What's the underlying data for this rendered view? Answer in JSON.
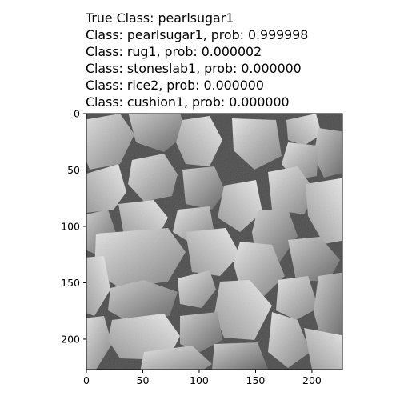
{
  "title_lines": [
    "True Class: pearlsugar1",
    "Class: pearlsugar1, prob: 0.999998",
    "Class: rug1, prob: 0.000002",
    "Class: stoneslab1, prob: 0.000000",
    "Class: rice2, prob: 0.000000",
    "Class: cushion1, prob: 0.000000"
  ],
  "image": {
    "subject": "grayscale texture of irregular light-grey stone pebbles"
  },
  "axes": {
    "x_ticks": [
      {
        "value": 0,
        "label": "0"
      },
      {
        "value": 50,
        "label": "50"
      },
      {
        "value": 100,
        "label": "100"
      },
      {
        "value": 150,
        "label": "150"
      },
      {
        "value": 200,
        "label": "200"
      }
    ],
    "y_ticks": [
      {
        "value": 0,
        "label": "0"
      },
      {
        "value": 50,
        "label": "50"
      },
      {
        "value": 100,
        "label": "100"
      },
      {
        "value": 150,
        "label": "150"
      },
      {
        "value": 200,
        "label": "200"
      }
    ],
    "x_range": [
      0,
      227
    ],
    "y_range": [
      0,
      227
    ],
    "y_inverted": true
  },
  "colors": {
    "background": "#ffffff",
    "text": "#000000",
    "frame": "#000000"
  }
}
